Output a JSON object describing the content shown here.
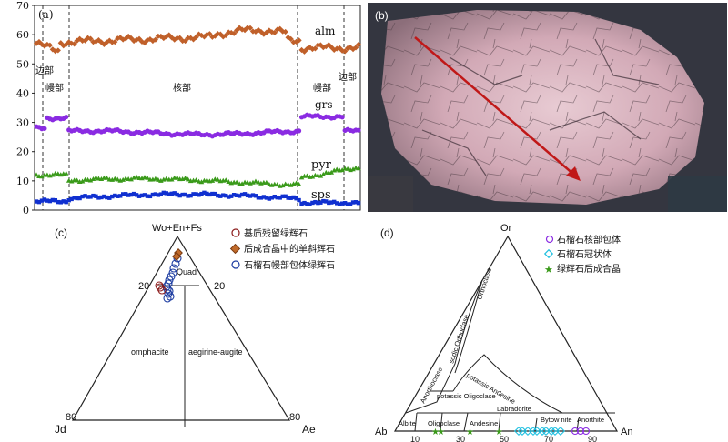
{
  "panel_a": {
    "label": "(a)",
    "ylim": [
      0,
      70
    ],
    "yticks": [
      "0",
      "10",
      "20",
      "30",
      "40",
      "50",
      "60",
      "70"
    ],
    "zones": [
      "边部",
      "幔部",
      "核部",
      "幔部",
      "边部"
    ],
    "series_labels": [
      "alm",
      "grs",
      "pyr",
      "sps"
    ],
    "colors": {
      "alm": "#c0602a",
      "grs": "#8a2be2",
      "pyr": "#3a9a1a",
      "sps": "#1030d0"
    }
  },
  "panel_b": {
    "label": "(b)"
  },
  "panel_c": {
    "label": "(c)",
    "apex_top": "Wo+En+Fs",
    "apex_left": "Jd",
    "apex_right": "Ae",
    "legend": [
      "基质残留绿辉石",
      "后成合晶中的单斜辉石",
      "石榴石幔部包体绿辉石"
    ],
    "legend_colors": [
      "#8b1a1a",
      "#c06a2a",
      "#1a3aa0"
    ],
    "fields": [
      "Quad",
      "omphacite",
      "aegirine-augite"
    ],
    "tick_20_left": "20",
    "tick_20_right": "20",
    "tick_80_left": "80",
    "tick_80_right": "80"
  },
  "panel_d": {
    "label": "(d)",
    "apex_top": "Or",
    "apex_left": "Ab",
    "apex_right": "An",
    "legend": [
      "石榴石核部包体",
      "石榴石冠状体",
      "绿辉石后成合晶"
    ],
    "legend_colors": [
      "#8a2be2",
      "#20c0e0",
      "#3a9a1a"
    ],
    "fields": [
      "Orthoclase",
      "sodic Orthoclase",
      "Anorthoclase",
      "potassic Oligoclase",
      "potassic Andesine",
      "Albite",
      "Oligoclase",
      "Andesine",
      "Labradorite",
      "Bytow nite",
      "Anorthite"
    ],
    "axis_ticks": [
      "10",
      "30",
      "50",
      "70",
      "90"
    ]
  }
}
